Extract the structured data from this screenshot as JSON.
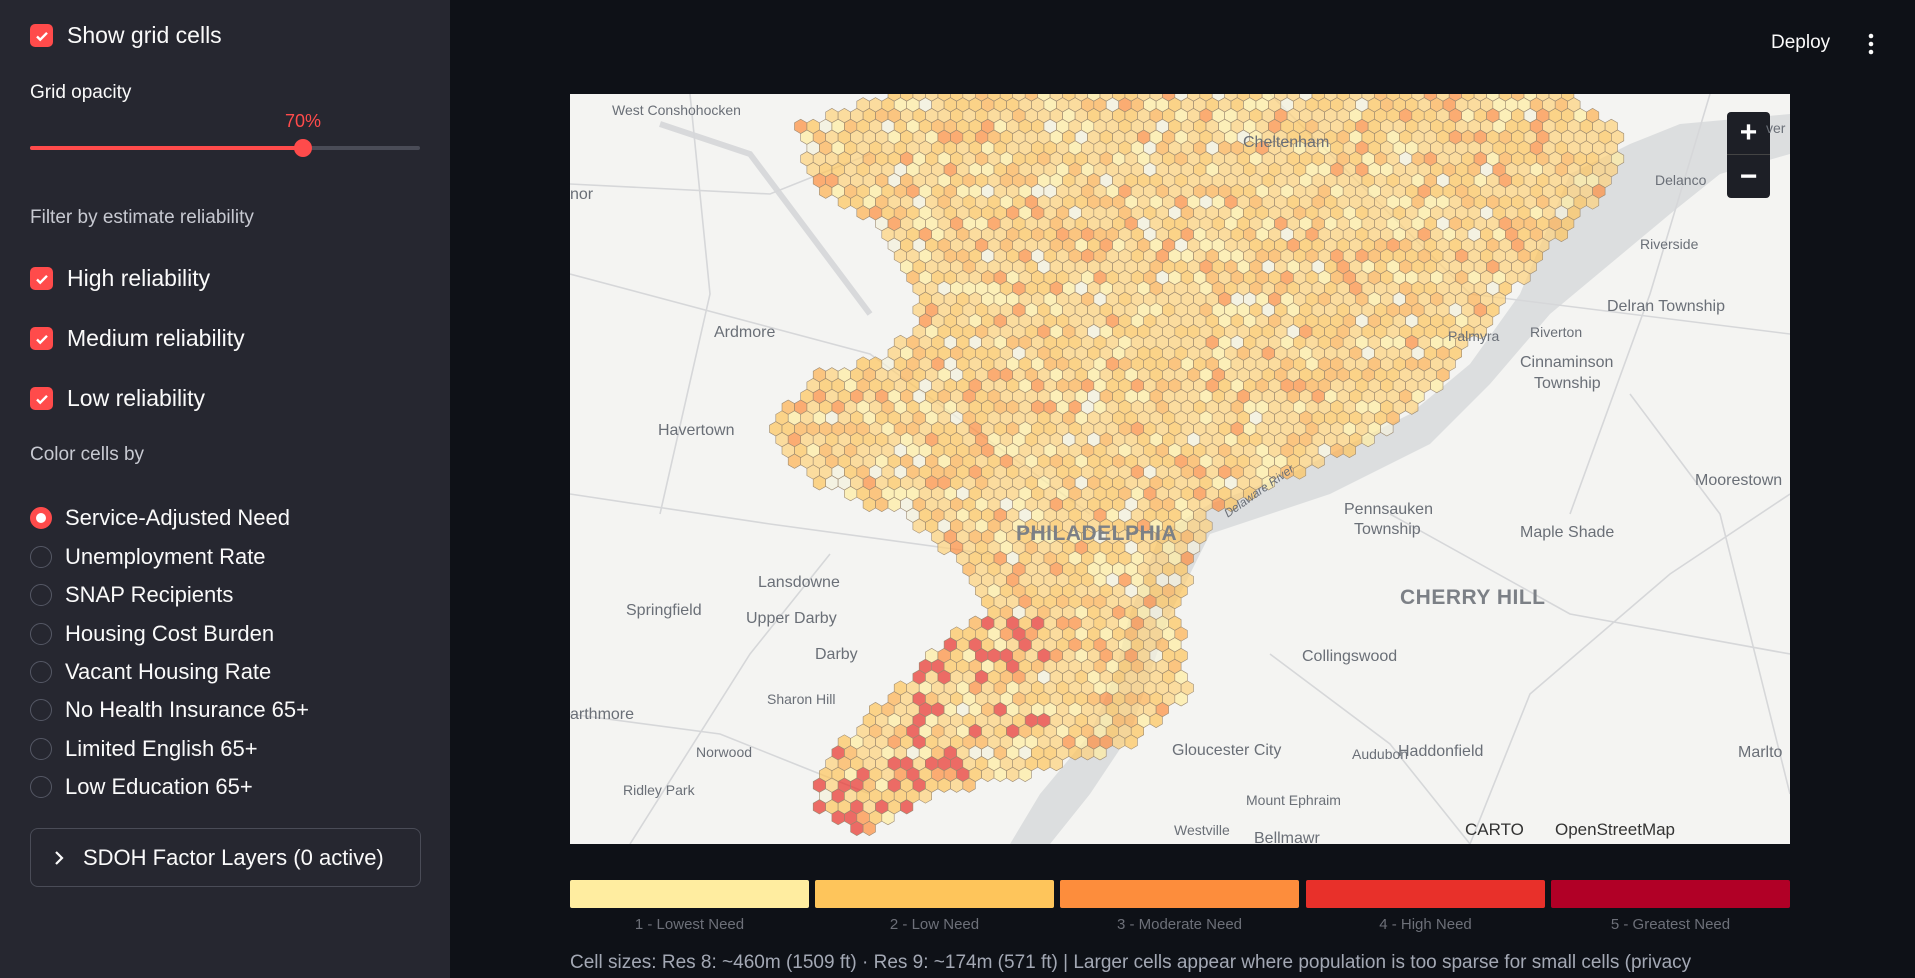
{
  "sidebar": {
    "show_grid": {
      "label": "Show grid cells",
      "checked": true
    },
    "grid_opacity": {
      "label": "Grid opacity",
      "value_label": "70%",
      "value": 0.7
    },
    "reliability_filter": {
      "label": "Filter by estimate reliability",
      "options": [
        {
          "label": "High reliability",
          "checked": true
        },
        {
          "label": "Medium reliability",
          "checked": true
        },
        {
          "label": "Low reliability",
          "checked": true
        }
      ]
    },
    "color_by": {
      "label": "Color cells by",
      "selected": "Service-Adjusted Need",
      "options": [
        "Service-Adjusted Need",
        "Unemployment Rate",
        "SNAP Recipients",
        "Housing Cost Burden",
        "Vacant Housing Rate",
        "No Health Insurance 65+",
        "Limited English 65+",
        "Low Education 65+"
      ]
    },
    "sdoh_expander": {
      "label": "SDOH Factor Layers (0 active)"
    }
  },
  "header": {
    "deploy_label": "Deploy",
    "menu_icon": "kebab-menu-icon"
  },
  "map": {
    "places": [
      {
        "name": "West Conshohocken",
        "size": "sm"
      },
      {
        "name": "Cheltenham",
        "size": "md"
      },
      {
        "name": "Delanco",
        "size": "sm"
      },
      {
        "name": "Riverside",
        "size": "sm"
      },
      {
        "name": "Delran Township",
        "size": "md"
      },
      {
        "name": "Ardmore",
        "size": "md"
      },
      {
        "name": "Palmyra",
        "size": "sm"
      },
      {
        "name": "Riverton",
        "size": "sm"
      },
      {
        "name": "Cinnaminson",
        "size": "md"
      },
      {
        "name": "Township",
        "size": "md"
      },
      {
        "name": "Havertown",
        "size": "md"
      },
      {
        "name": "Moorestown",
        "size": "md"
      },
      {
        "name": "PHILADELPHIA",
        "size": "big"
      },
      {
        "name": "Pennsauken",
        "size": "md"
      },
      {
        "name": "Township",
        "size": "md"
      },
      {
        "name": "Maple Shade",
        "size": "md"
      },
      {
        "name": "Lansdowne",
        "size": "md"
      },
      {
        "name": "CHERRY HILL",
        "size": "big"
      },
      {
        "name": "Springfield",
        "size": "md"
      },
      {
        "name": "Upper Darby",
        "size": "md"
      },
      {
        "name": "Collingswood",
        "size": "md"
      },
      {
        "name": "Darby",
        "size": "md"
      },
      {
        "name": "Sharon Hill",
        "size": "sm"
      },
      {
        "name": "arthmore",
        "size": "md"
      },
      {
        "name": "Norwood",
        "size": "sm"
      },
      {
        "name": "Gloucester City",
        "size": "md"
      },
      {
        "name": "Audubon",
        "size": "sm"
      },
      {
        "name": "Haddonfield",
        "size": "md"
      },
      {
        "name": "Marlto",
        "size": "md"
      },
      {
        "name": "Ridley Park",
        "size": "sm"
      },
      {
        "name": "Mount Ephraim",
        "size": "sm"
      },
      {
        "name": "Westville",
        "size": "sm"
      },
      {
        "name": "Bellmawr",
        "size": "md"
      },
      {
        "name": "nor",
        "size": "md"
      },
      {
        "name": "ver",
        "size": "sm"
      },
      {
        "name": "Delaware River",
        "size": "sm"
      }
    ],
    "zoom_in": "+",
    "zoom_out": "−",
    "attribution": [
      "CARTO",
      "OpenStreetMap"
    ]
  },
  "legend": [
    {
      "label": "1 - Lowest Need",
      "color": "#ffeda0"
    },
    {
      "label": "2 - Low Need",
      "color": "#fec55b"
    },
    {
      "label": "3 - Moderate Need",
      "color": "#fd8d3c"
    },
    {
      "label": "4 - High Need",
      "color": "#e8302a"
    },
    {
      "label": "5 - Greatest Need",
      "color": "#b10026"
    }
  ],
  "footnote": "Cell sizes: Res 8: ~460m (1509 ft) · Res 9: ~174m (571 ft) | Larger cells appear where population is too sparse for small cells (privacy",
  "colors": {
    "accent": "#ff4b4b",
    "sidebar_bg": "#262730",
    "app_bg": "#0e1117"
  }
}
